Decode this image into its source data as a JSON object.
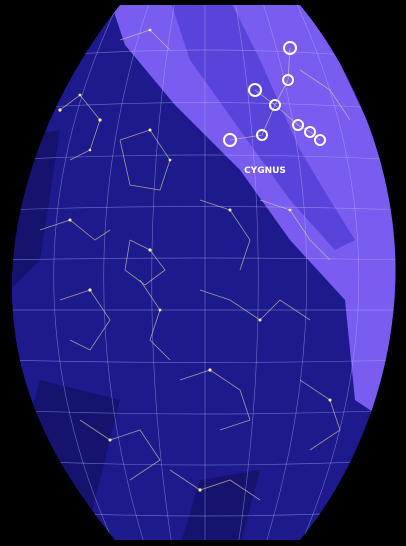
{
  "map": {
    "label": "CYGNUS"
  }
}
